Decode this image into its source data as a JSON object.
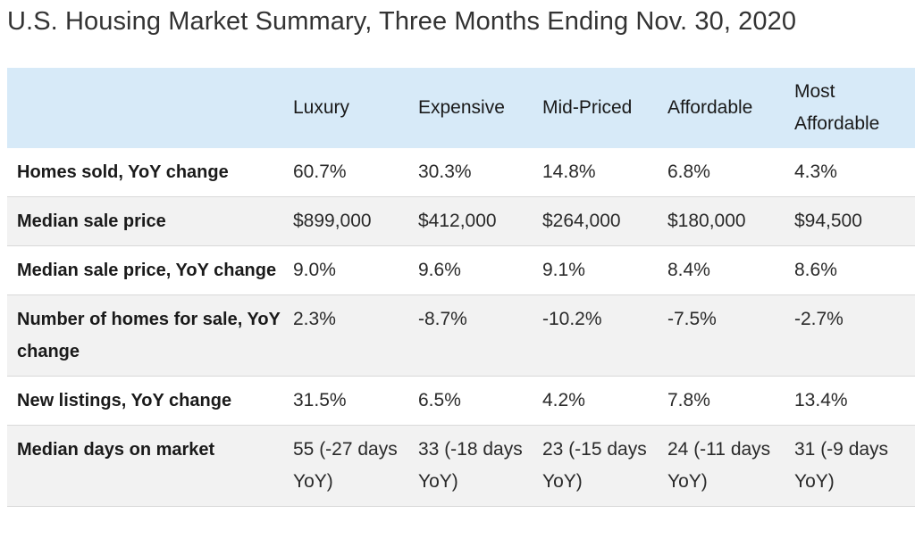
{
  "title": "U.S. Housing Market Summary, Three Months Ending Nov. 30, 2020",
  "table": {
    "columns": [
      "",
      "Luxury",
      "Expensive",
      "Mid-Priced",
      "Affordable",
      "Most Affordable"
    ],
    "rows": [
      {
        "label": "Homes sold, YoY change",
        "values": [
          "60.7%",
          "30.3%",
          "14.8%",
          "6.8%",
          "4.3%"
        ]
      },
      {
        "label": "Median sale price",
        "values": [
          "$899,000",
          "$412,000",
          "$264,000",
          "$180,000",
          "$94,500"
        ]
      },
      {
        "label": "Median sale price, YoY change",
        "values": [
          "9.0%",
          "9.6%",
          "9.1%",
          "8.4%",
          "8.6%"
        ]
      },
      {
        "label": "Number of homes for sale, YoY change",
        "values": [
          "2.3%",
          "-8.7%",
          "-10.2%",
          "-7.5%",
          "-2.7%"
        ]
      },
      {
        "label": "New listings, YoY change",
        "values": [
          "31.5%",
          "6.5%",
          "4.2%",
          "7.8%",
          "13.4%"
        ]
      },
      {
        "label": "Median days on market",
        "values": [
          "55 (-27 days YoY)",
          "33 (-18 days YoY)",
          "23 (-15 days YoY)",
          "24 (-11 days YoY)",
          "31 (-9 days YoY)"
        ]
      }
    ]
  }
}
